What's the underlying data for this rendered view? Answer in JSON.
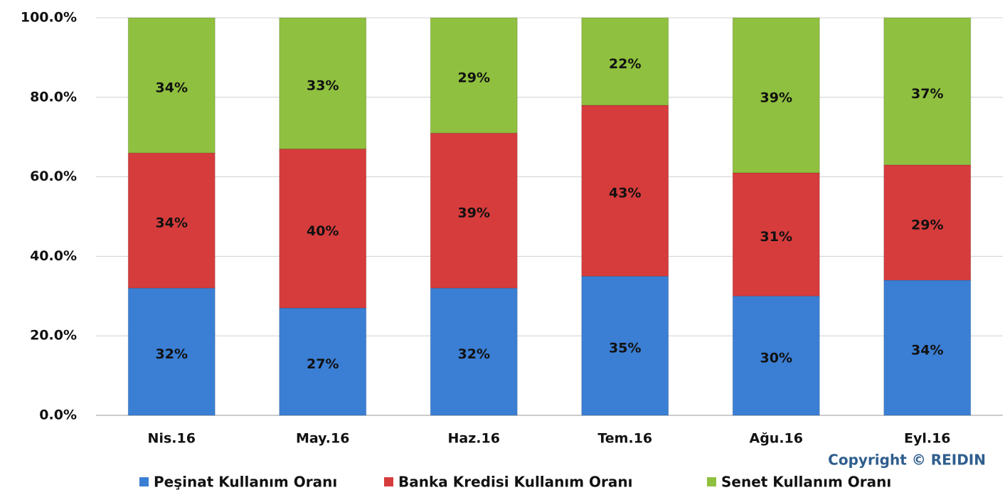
{
  "chart_data": {
    "type": "stacked_bar",
    "categories": [
      "Nis.16",
      "May.16",
      "Haz.16",
      "Tem.16",
      "Ağu.16",
      "Eyl.16"
    ],
    "series": [
      {
        "name": "Peşinat Kullanım Oranı",
        "color": "#3b7fd4",
        "values": [
          32,
          27,
          32,
          35,
          30,
          34
        ],
        "value_labels": [
          "32%",
          "27%",
          "32%",
          "35%",
          "30%",
          "34%"
        ]
      },
      {
        "name": "Banka Kredisi Kullanım Oranı",
        "color": "#d63c3c",
        "values": [
          34,
          40,
          39,
          43,
          31,
          29
        ],
        "value_labels": [
          "34%",
          "40%",
          "39%",
          "43%",
          "31%",
          "29%"
        ]
      },
      {
        "name": "Senet Kullanım Oranı",
        "color": "#8fc03f",
        "values": [
          34,
          33,
          29,
          22,
          39,
          37
        ],
        "value_labels": [
          "34%",
          "33%",
          "29%",
          "22%",
          "39%",
          "37%"
        ]
      }
    ],
    "ylim": [
      0,
      100
    ],
    "yticks": [
      {
        "value": 0,
        "label": "0.0%"
      },
      {
        "value": 20,
        "label": "20.0%"
      },
      {
        "value": 40,
        "label": "40.0%"
      },
      {
        "value": 60,
        "label": "60.0%"
      },
      {
        "value": 80,
        "label": "80.0%"
      },
      {
        "value": 100,
        "label": "100.0%"
      }
    ],
    "grid": true,
    "legend": "bottom",
    "annotation": "Copyright © REIDIN"
  }
}
